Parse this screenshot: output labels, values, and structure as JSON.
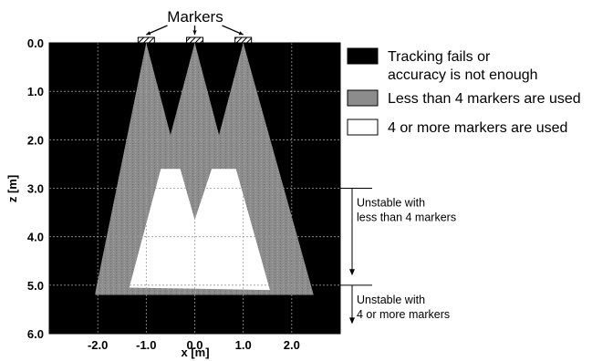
{
  "chart_data": {
    "type": "area",
    "title": "",
    "xlabel": "x [m]",
    "ylabel": "z [m]",
    "xlim": [
      -3.0,
      3.0
    ],
    "ylim": [
      0.0,
      6.0
    ],
    "y_inverted": true,
    "grid": true,
    "xticks": [
      -2.0,
      -1.0,
      0.0,
      1.0,
      2.0
    ],
    "xtick_labels": [
      "-2.0",
      "-1.0",
      "0.0",
      "1.0",
      "2.0"
    ],
    "yticks": [
      0.0,
      1.0,
      2.0,
      3.0,
      4.0,
      5.0,
      6.0
    ],
    "ytick_labels": [
      "0.0",
      "1.0",
      "2.0",
      "3.0",
      "4.0",
      "5.0",
      "6.0"
    ],
    "markers_label": "Markers",
    "markers_x": [
      -1.0,
      0.0,
      1.0
    ],
    "legend_position": "right",
    "regions": [
      {
        "name": "Tracking fails or accuracy is not enough",
        "label_lines": [
          "Tracking fails or",
          "accuracy is not enough"
        ],
        "color": "#000000",
        "polygon": [
          [
            -3.0,
            0.0
          ],
          [
            3.0,
            0.0
          ],
          [
            3.0,
            6.0
          ],
          [
            -3.0,
            6.0
          ]
        ]
      },
      {
        "name": "Less than 4 markers are used",
        "label_lines": [
          "Less than 4 markers are used"
        ],
        "color": "#8c8c8c",
        "polygon": [
          [
            -2.05,
            5.15
          ],
          [
            -1.0,
            0.0
          ],
          [
            -0.5,
            1.9
          ],
          [
            0.0,
            0.0
          ],
          [
            0.5,
            1.9
          ],
          [
            1.0,
            0.0
          ],
          [
            2.45,
            5.2
          ],
          [
            -2.05,
            5.2
          ]
        ]
      },
      {
        "name": "4 or more markers are used",
        "label_lines": [
          "4 or more markers are used"
        ],
        "color": "#ffffff",
        "polygon": [
          [
            -1.35,
            5.05
          ],
          [
            -0.7,
            2.6
          ],
          [
            -0.3,
            2.6
          ],
          [
            0.0,
            3.65
          ],
          [
            0.35,
            2.6
          ],
          [
            0.85,
            2.6
          ],
          [
            1.55,
            5.1
          ]
        ]
      }
    ],
    "annotations": [
      {
        "lines": [
          "Unstable with",
          "less than 4 markers"
        ],
        "z_range": [
          3.0,
          4.8
        ]
      },
      {
        "lines": [
          "Unstable with",
          "4 or more markers"
        ],
        "z_range": [
          5.0,
          5.8
        ]
      }
    ]
  }
}
